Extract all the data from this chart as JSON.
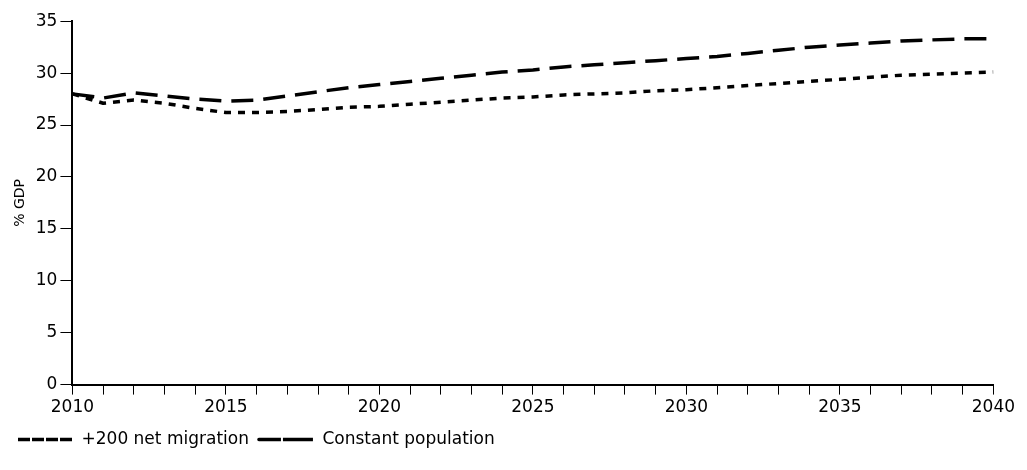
{
  "chart_data": {
    "type": "line",
    "ylabel": "% GDP",
    "x": [
      2010,
      2011,
      2012,
      2013,
      2014,
      2015,
      2016,
      2017,
      2018,
      2019,
      2020,
      2021,
      2022,
      2023,
      2024,
      2025,
      2026,
      2027,
      2028,
      2029,
      2030,
      2031,
      2032,
      2033,
      2034,
      2035,
      2036,
      2037,
      2038,
      2039,
      2040
    ],
    "series": [
      {
        "name": "+200 net migration",
        "color": "#000000",
        "line_style": "dotted",
        "values": [
          28,
          27.1,
          27.4,
          27.1,
          26.6,
          26.2,
          26.2,
          26.3,
          26.5,
          26.7,
          26.8,
          27,
          27.2,
          27.4,
          27.6,
          27.7,
          27.9,
          28,
          28.1,
          28.3,
          28.4,
          28.6,
          28.8,
          29,
          29.2,
          29.4,
          29.6,
          29.8,
          29.9,
          30,
          30.1
        ]
      },
      {
        "name": "Constant population",
        "color": "#000000",
        "line_style": "dashed",
        "values": [
          28,
          27.6,
          28.1,
          27.8,
          27.5,
          27.3,
          27.4,
          27.8,
          28.2,
          28.6,
          28.9,
          29.2,
          29.5,
          29.8,
          30.1,
          30.3,
          30.6,
          30.8,
          31,
          31.2,
          31.4,
          31.6,
          31.9,
          32.2,
          32.5,
          32.7,
          32.9,
          33.1,
          33.2,
          33.3,
          33.3
        ]
      }
    ],
    "xlim": [
      2010,
      2040
    ],
    "xticks": [
      2010,
      {
        "value": 2011,
        "label": null
      },
      {
        "value": 2012,
        "label": null
      },
      {
        "value": 2013,
        "label": null
      },
      {
        "value": 2014,
        "label": null
      },
      2015,
      {
        "value": 2016,
        "label": null
      },
      {
        "value": 2017,
        "label": null
      },
      {
        "value": 2018,
        "label": null
      },
      {
        "value": 2019,
        "label": null
      },
      2020,
      {
        "value": 2021,
        "label": null
      },
      {
        "value": 2022,
        "label": null
      },
      {
        "value": 2023,
        "label": null
      },
      {
        "value": 2024,
        "label": null
      },
      2025,
      {
        "value": 2026,
        "label": null
      },
      {
        "value": 2027,
        "label": null
      },
      {
        "value": 2028,
        "label": null
      },
      {
        "value": 2029,
        "label": null
      },
      2030,
      {
        "value": 2031,
        "label": null
      },
      {
        "value": 2032,
        "label": null
      },
      {
        "value": 2033,
        "label": null
      },
      {
        "value": 2034,
        "label": null
      },
      2035,
      {
        "value": 2036,
        "label": null
      },
      {
        "value": 2037,
        "label": null
      },
      {
        "value": 2038,
        "label": null
      },
      {
        "value": 2039,
        "label": null
      },
      2040
    ],
    "ylim": [
      0,
      35
    ],
    "yticks": [
      0,
      5,
      10,
      15,
      20,
      25,
      30,
      35
    ],
    "grid": false,
    "legend": "bottom left",
    "marker": "none"
  }
}
